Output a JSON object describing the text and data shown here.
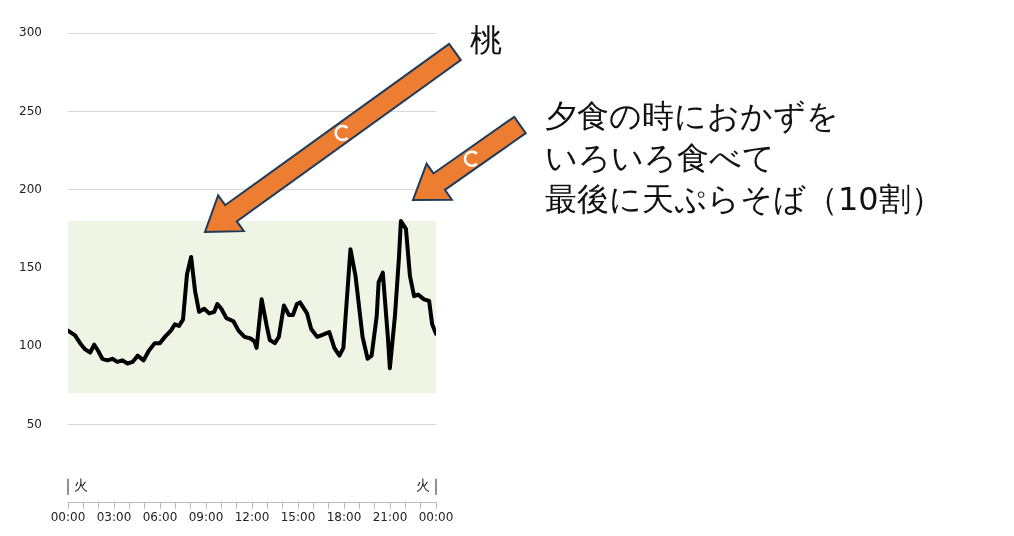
{
  "chart_data": {
    "type": "line",
    "x": [
      0,
      0.46,
      0.79,
      1.12,
      1.45,
      1.71,
      1.97,
      2.24,
      2.57,
      2.89,
      3.22,
      3.55,
      3.88,
      4.21,
      4.54,
      4.93,
      5.26,
      5.66,
      5.99,
      6.32,
      6.71,
      6.97,
      7.24,
      7.5,
      7.76,
      8.03,
      8.29,
      8.55,
      8.88,
      9.21,
      9.54,
      9.74,
      10.0,
      10.33,
      10.79,
      11.12,
      11.51,
      11.91,
      12.17,
      12.3,
      12.63,
      12.96,
      13.16,
      13.49,
      13.75,
      14.08,
      14.41,
      14.67,
      14.93,
      15.13,
      15.59,
      15.86,
      16.25,
      16.51,
      17.04,
      17.37,
      17.7,
      17.96,
      18.42,
      18.75,
      19.21,
      19.54,
      19.8,
      20.13,
      20.26,
      20.53,
      20.86,
      20.99,
      21.32,
      21.58,
      21.71,
      22.04,
      22.3,
      22.57,
      22.83,
      23.22,
      23.55,
      23.75,
      24.0
    ],
    "series": [
      {
        "color": "#000000",
        "values": [
          110,
          107,
          102,
          98,
          96,
          101,
          97,
          92,
          91,
          92,
          90,
          91,
          89,
          90,
          94,
          91,
          97,
          102,
          102,
          106,
          110,
          114,
          113,
          117,
          146,
          157,
          135,
          122,
          124,
          121,
          122,
          127,
          124,
          118,
          116,
          110,
          106,
          105,
          103,
          99,
          130,
          113,
          104,
          102,
          106,
          126,
          120,
          120,
          127,
          128,
          121,
          111,
          106,
          107,
          109,
          99,
          94,
          99,
          162,
          145,
          106,
          92,
          94,
          119,
          141,
          147,
          106,
          86,
          119,
          156,
          180,
          175,
          145,
          132,
          133,
          130,
          129,
          114,
          108
        ]
      }
    ],
    "ylim": [
      0,
      300
    ],
    "yticks": [
      50,
      100,
      150,
      200,
      250,
      300
    ],
    "xlim": [
      0,
      24
    ],
    "xticks": [
      {
        "value": 0,
        "label": "00:00"
      },
      {
        "value": 1,
        "label": null
      },
      {
        "value": 2,
        "label": null
      },
      {
        "value": 3,
        "label": "03:00"
      },
      {
        "value": 4,
        "label": null
      },
      {
        "value": 5,
        "label": null
      },
      {
        "value": 6,
        "label": "06:00"
      },
      {
        "value": 7,
        "label": null
      },
      {
        "value": 8,
        "label": null
      },
      {
        "value": 9,
        "label": "09:00"
      },
      {
        "value": 10,
        "label": null
      },
      {
        "value": 11,
        "label": null
      },
      {
        "value": 12,
        "label": "12:00"
      },
      {
        "value": 13,
        "label": null
      },
      {
        "value": 14,
        "label": null
      },
      {
        "value": 15,
        "label": "15:00"
      },
      {
        "value": 16,
        "label": null
      },
      {
        "value": 17,
        "label": null
      },
      {
        "value": 18,
        "label": "18:00"
      },
      {
        "value": 19,
        "label": null
      },
      {
        "value": 20,
        "label": null
      },
      {
        "value": 21,
        "label": "21:00"
      },
      {
        "value": 22,
        "label": null
      },
      {
        "value": 23,
        "label": null
      },
      {
        "value": 24,
        "label": "00:00"
      }
    ],
    "grid": "y",
    "legend": false,
    "marker": "none",
    "line_style": "solid",
    "bands": [
      {
        "axis": "y",
        "from": 70,
        "to": 180,
        "color": "#eef5e4"
      }
    ],
    "annotations": [
      "桃",
      "夕食の時におかずをいろいろ食べて最後に天ぷらそば（10割）",
      "火",
      "火"
    ]
  }
}
